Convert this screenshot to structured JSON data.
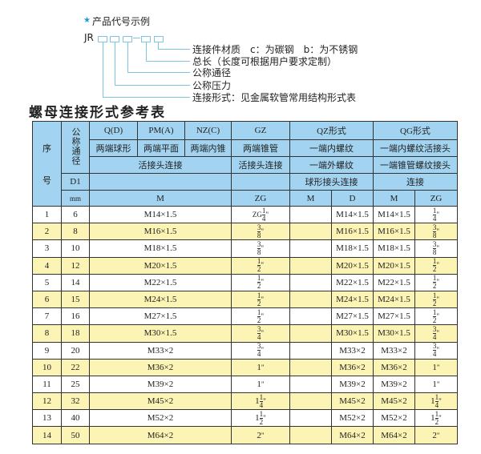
{
  "example": {
    "star_icon": "star",
    "title": "产品代号示例",
    "code_prefix": "JR",
    "dash": "-",
    "labels": [
      "连接件材质　c：为碳钢　b：为不锈钢",
      "总长（长度可根据用户要求定制）",
      "公称通径",
      "公称压力",
      "连接形式：见金属软管常用结构形式表"
    ]
  },
  "table_title": "螺母连接形式参考表",
  "header": {
    "seq": "序号",
    "seq1": "序",
    "seq2": "号",
    "dn": "公称通径",
    "d1": "D1",
    "mm": "mm",
    "q": "Q(D)",
    "pm": "PM(A)",
    "nz": "NZ(C)",
    "gz": "GZ",
    "qz": "QZ形式",
    "qg": "QG形式",
    "q2": "两端球形",
    "pm2": "两端平面",
    "nz2": "两端内锥",
    "gz2": "两端锥管",
    "qz2": "一端内螺纹",
    "qg2": "一端内螺纹活接头",
    "hjt": "活接头连接",
    "gz3": "活接头连接",
    "qz3": "一端外螺纹",
    "qg3": "一端锥管螺纹接头",
    "qz4": "球形接头连接",
    "qg4": "连接",
    "m": "M",
    "zg": "ZG",
    "qz_m": "M",
    "qz_d": "D",
    "qg_m": "M",
    "qg_zg": "ZG"
  },
  "colors": {
    "header_bg": "#a2d4f1",
    "alt_row_bg": "#fcf4b4",
    "accent": "#7cc6e4"
  },
  "rows": [
    {
      "no": "1",
      "dn": "6",
      "m": "M14×1.5",
      "zg": {
        "p": "ZG",
        "w": "",
        "n": "1",
        "d": "4",
        "s": "\""
      },
      "qz_m": "",
      "qz_d": "M14×1.5",
      "qg_m": "M14×1.5",
      "qg_zg": {
        "w": "",
        "n": "1",
        "d": "4",
        "s": "\""
      }
    },
    {
      "no": "2",
      "dn": "8",
      "m": "M16×1.5",
      "zg": {
        "p": "",
        "w": "",
        "n": "3",
        "d": "8",
        "s": "\""
      },
      "qz_m": "",
      "qz_d": "M16×1.5",
      "qg_m": "M16×1.5",
      "qg_zg": {
        "w": "",
        "n": "3",
        "d": "8",
        "s": "\""
      }
    },
    {
      "no": "3",
      "dn": "10",
      "m": "M18×1.5",
      "zg": {
        "p": "",
        "w": "",
        "n": "3",
        "d": "8",
        "s": "\""
      },
      "qz_m": "",
      "qz_d": "M18×1.5",
      "qg_m": "M18×1.5",
      "qg_zg": {
        "w": "",
        "n": "3",
        "d": "8",
        "s": "\""
      }
    },
    {
      "no": "4",
      "dn": "12",
      "m": "M20×1.5",
      "zg": {
        "p": "",
        "w": "",
        "n": "1",
        "d": "2",
        "s": "\""
      },
      "qz_m": "",
      "qz_d": "M20×1.5",
      "qg_m": "M20×1.5",
      "qg_zg": {
        "w": "",
        "n": "1",
        "d": "2",
        "s": "\""
      }
    },
    {
      "no": "5",
      "dn": "14",
      "m": "M22×1.5",
      "zg": {
        "p": "",
        "w": "",
        "n": "1",
        "d": "2",
        "s": "\""
      },
      "qz_m": "",
      "qz_d": "M22×1.5",
      "qg_m": "M22×1.5",
      "qg_zg": {
        "w": "",
        "n": "1",
        "d": "2",
        "s": "\""
      }
    },
    {
      "no": "6",
      "dn": "15",
      "m": "M24×1.5",
      "zg": {
        "p": "",
        "w": "",
        "n": "1",
        "d": "2",
        "s": "\""
      },
      "qz_m": "",
      "qz_d": "M24×1.5",
      "qg_m": "M24×1.5",
      "qg_zg": {
        "w": "",
        "n": "1",
        "d": "2",
        "s": "\""
      }
    },
    {
      "no": "7",
      "dn": "16",
      "m": "M27×1.5",
      "zg": {
        "p": "",
        "w": "",
        "n": "1",
        "d": "2",
        "s": "\""
      },
      "qz_m": "",
      "qz_d": "M27×1.5",
      "qg_m": "M27×1.5",
      "qg_zg": {
        "w": "",
        "n": "1",
        "d": "2",
        "s": "\""
      }
    },
    {
      "no": "8",
      "dn": "18",
      "m": "M30×1.5",
      "zg": {
        "p": "",
        "w": "",
        "n": "3",
        "d": "4",
        "s": "\""
      },
      "qz_m": "",
      "qz_d": "M30×1.5",
      "qg_m": "M30×1.5",
      "qg_zg": {
        "w": "",
        "n": "3",
        "d": "4",
        "s": "\""
      }
    },
    {
      "no": "9",
      "dn": "20",
      "m": "M33×2",
      "zg": {
        "p": "",
        "w": "",
        "n": "3",
        "d": "4",
        "s": "\""
      },
      "qz_m": "",
      "qz_d": "M33×2",
      "qg_m": "M33×2",
      "qg_zg": {
        "w": "",
        "n": "3",
        "d": "4",
        "s": "\""
      }
    },
    {
      "no": "10",
      "dn": "22",
      "m": "M36×2",
      "zg": {
        "p": "",
        "w": "1",
        "n": "",
        "d": "",
        "s": "\""
      },
      "qz_m": "",
      "qz_d": "M36×2",
      "qg_m": "M36×2",
      "qg_zg": {
        "w": "1",
        "n": "",
        "d": "",
        "s": "\""
      }
    },
    {
      "no": "11",
      "dn": "25",
      "m": "M39×2",
      "zg": {
        "p": "",
        "w": "1",
        "n": "",
        "d": "",
        "s": "\""
      },
      "qz_m": "",
      "qz_d": "M39×2",
      "qg_m": "M39×2",
      "qg_zg": {
        "w": "1",
        "n": "",
        "d": "",
        "s": "\""
      }
    },
    {
      "no": "12",
      "dn": "32",
      "m": "M45×2",
      "zg": {
        "p": "",
        "w": "1",
        "n": "1",
        "d": "4",
        "s": "\""
      },
      "qz_m": "",
      "qz_d": "M45×2",
      "qg_m": "M45×2",
      "qg_zg": {
        "w": "1",
        "n": "1",
        "d": "4",
        "s": "\""
      }
    },
    {
      "no": "13",
      "dn": "40",
      "m": "M52×2",
      "zg": {
        "p": "",
        "w": "1",
        "n": "1",
        "d": "2",
        "s": "\""
      },
      "qz_m": "",
      "qz_d": "M52×2",
      "qg_m": "M52×2",
      "qg_zg": {
        "w": "1",
        "n": "1",
        "d": "2",
        "s": "\""
      }
    },
    {
      "no": "14",
      "dn": "50",
      "m": "M64×2",
      "zg": {
        "p": "",
        "w": "2",
        "n": "",
        "d": "",
        "s": "\""
      },
      "qz_m": "",
      "qz_d": "M64×2",
      "qg_m": "M64×2",
      "qg_zg": {
        "w": "2",
        "n": "",
        "d": "",
        "s": "\""
      }
    }
  ]
}
